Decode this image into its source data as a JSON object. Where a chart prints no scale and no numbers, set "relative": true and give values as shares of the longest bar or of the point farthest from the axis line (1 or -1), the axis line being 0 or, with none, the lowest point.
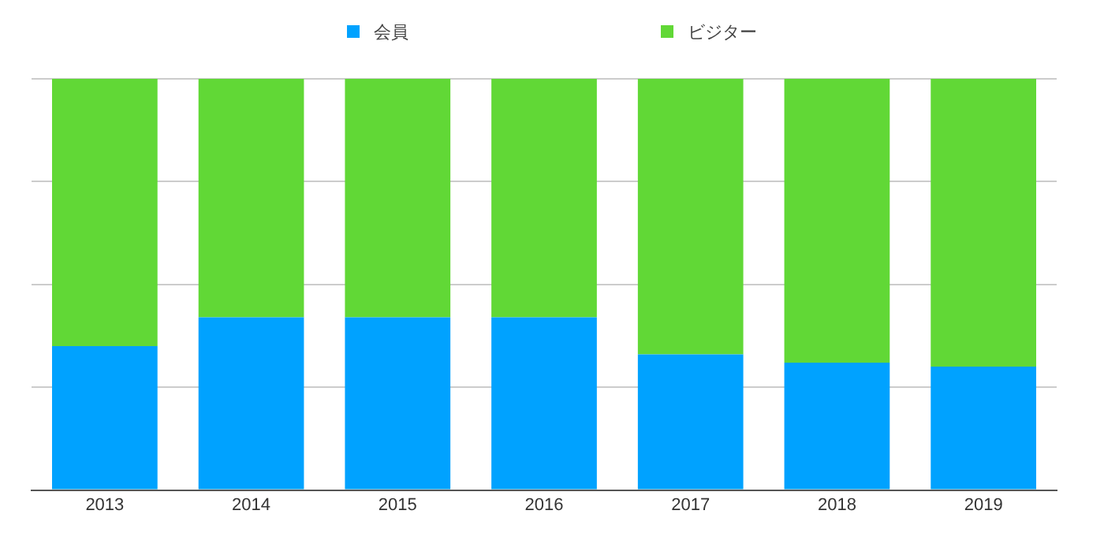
{
  "chart_data": {
    "type": "bar",
    "stacked": true,
    "relative": true,
    "categories": [
      "2013",
      "2014",
      "2015",
      "2016",
      "2017",
      "2018",
      "2019"
    ],
    "series": [
      {
        "name": "会員",
        "color": "#00a2ff",
        "values": [
          0.35,
          0.42,
          0.42,
          0.42,
          0.33,
          0.31,
          0.3
        ]
      },
      {
        "name": "ビジター",
        "color": "#61d836",
        "values": [
          0.65,
          0.58,
          0.58,
          0.58,
          0.67,
          0.69,
          0.7
        ]
      }
    ],
    "grid": "y",
    "legend": "top"
  }
}
